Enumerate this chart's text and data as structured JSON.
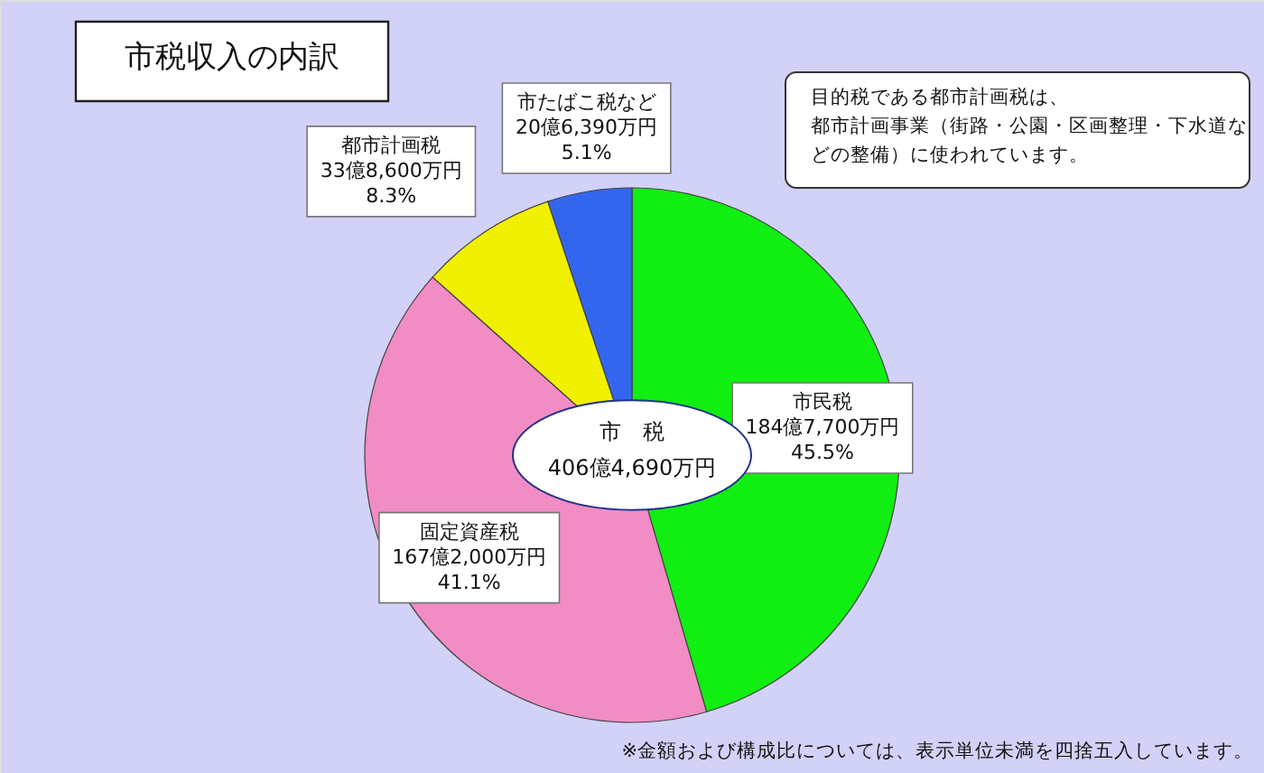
{
  "chart_data": {
    "type": "pie",
    "title": "市税収入の内訳",
    "categories": [
      "市民税",
      "固定資産税",
      "都市計画税",
      "市たばこ税など"
    ],
    "values": [
      45.5,
      41.1,
      8.3,
      5.1
    ],
    "colors": [
      "#11ee11",
      "#f28cc4",
      "#f0f000",
      "#3366ee"
    ],
    "value_labels": [
      "184億7,700万円\n45.5%",
      "167億2,000万円\n41.1%",
      "33億8,600万円\n8.3%",
      "20億6,390万円\n5.1%"
    ],
    "annotations": [
      "市　税",
      "406億4,690万円",
      "目的税である都市計画税は、都市計画事業（街路・公園・区画整理・下水道などの整備）に使われています。",
      "※金額および構成比については、表示単位未満を四捨五入しています。"
    ]
  }
}
